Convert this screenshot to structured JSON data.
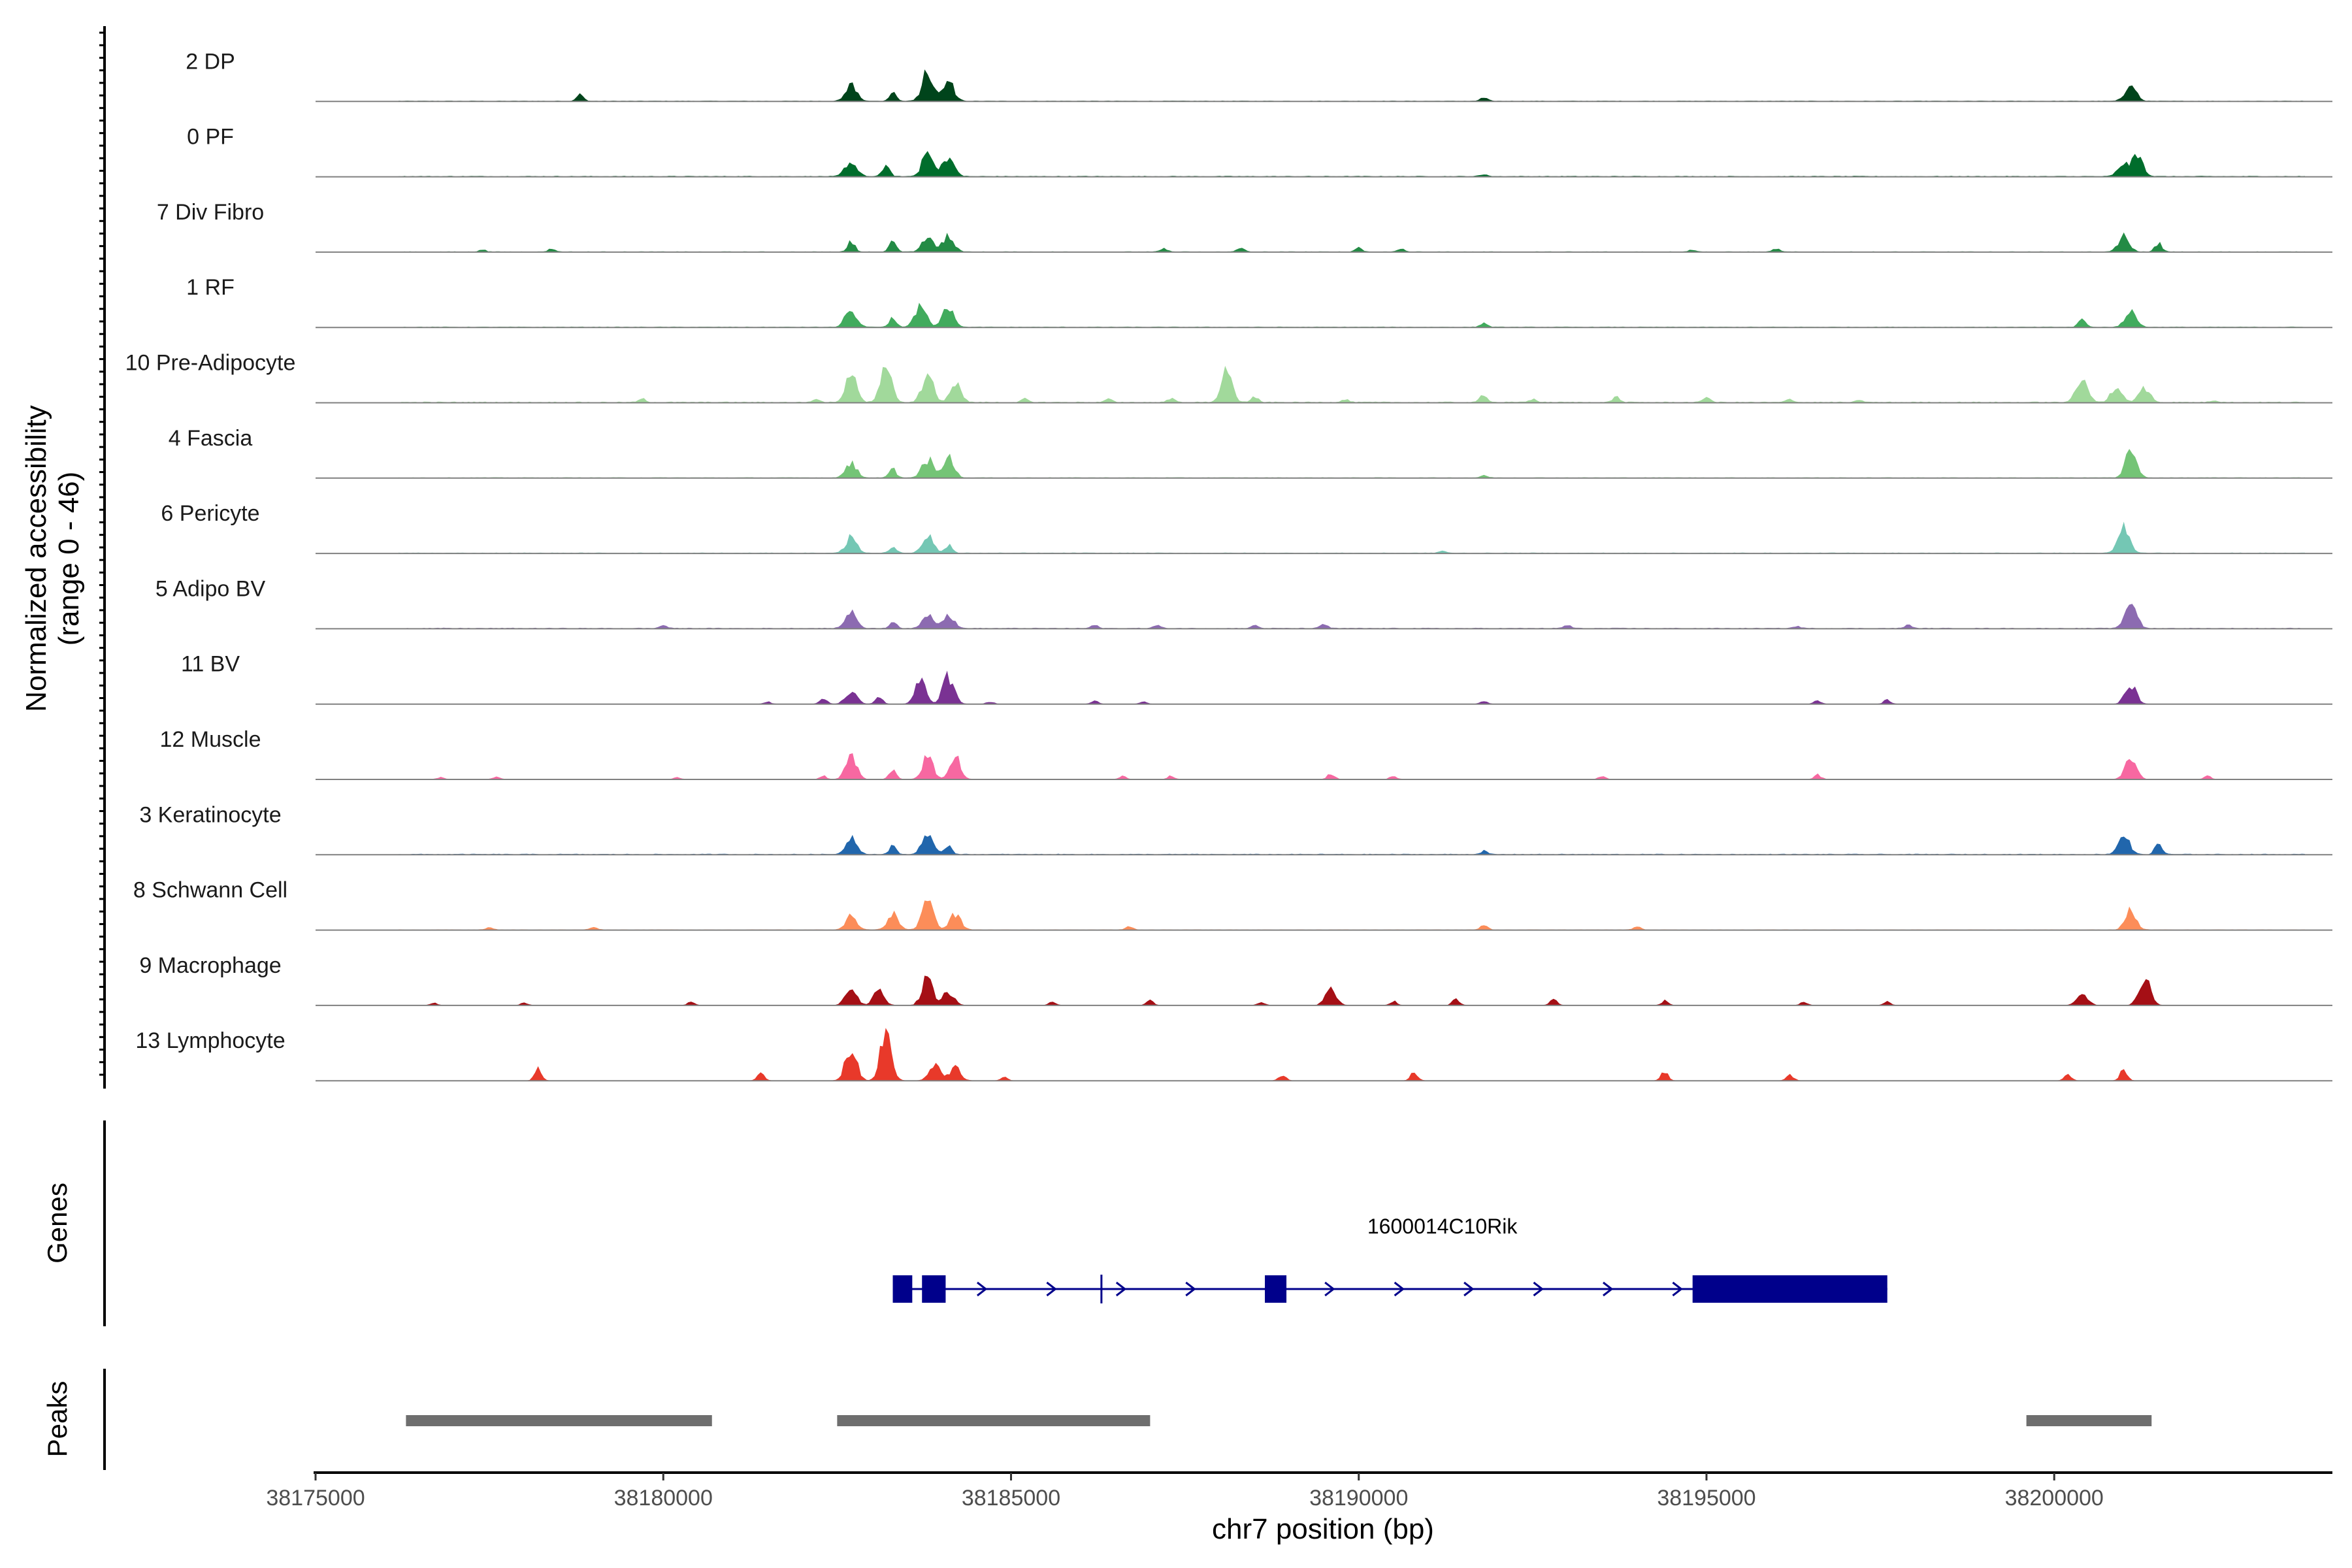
{
  "chart_data": {
    "type": "area",
    "title": "",
    "ylabel_line1": "Normalized accessibility",
    "ylabel_line2": "(range 0 - 46)",
    "y_range": [
      0,
      46
    ],
    "xlabel": "chr7 position (bp)",
    "x_range": [
      38175000,
      38204000
    ],
    "x_ticks": [
      38175000,
      38180000,
      38185000,
      38190000,
      38195000,
      38200000
    ],
    "x_tick_labels": [
      "38175000",
      "38180000",
      "38185000",
      "38190000",
      "38195000",
      "38200000"
    ],
    "tracks": [
      {
        "name": "2 DP",
        "color": "#00441b",
        "peaks": [
          [
            38178800,
            6
          ],
          [
            38182700,
            14
          ],
          [
            38183300,
            8
          ],
          [
            38183800,
            26
          ],
          [
            38184100,
            18
          ],
          [
            38191800,
            3
          ],
          [
            38201100,
            16
          ]
        ],
        "baseline": 0.4
      },
      {
        "name": "0 PF",
        "color": "#006d2c",
        "peaks": [
          [
            38182700,
            15
          ],
          [
            38183200,
            10
          ],
          [
            38183800,
            21
          ],
          [
            38184100,
            19
          ],
          [
            38191800,
            2
          ],
          [
            38201000,
            12
          ],
          [
            38201200,
            18
          ]
        ],
        "baseline": 0.5
      },
      {
        "name": "7 Div Fibro",
        "color": "#238b45",
        "peaks": [
          [
            38177400,
            2
          ],
          [
            38178400,
            3
          ],
          [
            38182700,
            10
          ],
          [
            38183300,
            9
          ],
          [
            38183800,
            14
          ],
          [
            38184100,
            15
          ],
          [
            38187200,
            3
          ],
          [
            38188300,
            4
          ],
          [
            38190000,
            4
          ],
          [
            38190600,
            3
          ],
          [
            38194800,
            2
          ],
          [
            38196000,
            3
          ],
          [
            38201000,
            14
          ],
          [
            38201500,
            8
          ]
        ],
        "baseline": 0.3
      },
      {
        "name": "1 RF",
        "color": "#41ab5d",
        "peaks": [
          [
            38182700,
            17
          ],
          [
            38183300,
            8
          ],
          [
            38183700,
            20
          ],
          [
            38184100,
            19
          ],
          [
            38191800,
            4
          ],
          [
            38200400,
            7
          ],
          [
            38201100,
            17
          ]
        ],
        "baseline": 0.4
      },
      {
        "name": "10 Pre-Adipocyte",
        "color": "#a1d99b",
        "peaks": [
          [
            38179700,
            3
          ],
          [
            38182200,
            3
          ],
          [
            38182700,
            29
          ],
          [
            38183200,
            34
          ],
          [
            38183800,
            25
          ],
          [
            38184200,
            17
          ],
          [
            38185200,
            3
          ],
          [
            38186400,
            3
          ],
          [
            38187300,
            4
          ],
          [
            38188100,
            27
          ],
          [
            38188500,
            5
          ],
          [
            38189800,
            3
          ],
          [
            38191800,
            8
          ],
          [
            38192500,
            3
          ],
          [
            38193700,
            5
          ],
          [
            38195000,
            5
          ],
          [
            38196200,
            3
          ],
          [
            38197200,
            2
          ],
          [
            38200400,
            25
          ],
          [
            38200900,
            15
          ],
          [
            38201300,
            13
          ],
          [
            38202300,
            2
          ]
        ],
        "baseline": 0.6
      },
      {
        "name": "4 Fascia",
        "color": "#74c476",
        "peaks": [
          [
            38182700,
            14
          ],
          [
            38183300,
            8
          ],
          [
            38183800,
            17
          ],
          [
            38184100,
            19
          ],
          [
            38191800,
            2
          ],
          [
            38201100,
            27
          ]
        ],
        "baseline": 0.4
      },
      {
        "name": "6 Pericyte",
        "color": "#74c7b4",
        "peaks": [
          [
            38182700,
            14
          ],
          [
            38183300,
            6
          ],
          [
            38183800,
            16
          ],
          [
            38184100,
            8
          ],
          [
            38191200,
            2
          ],
          [
            38201000,
            24
          ]
        ],
        "baseline": 0.4
      },
      {
        "name": "5 Adipo BV",
        "color": "#8c6bb1",
        "peaks": [
          [
            38180000,
            3
          ],
          [
            38182700,
            16
          ],
          [
            38183300,
            6
          ],
          [
            38183800,
            13
          ],
          [
            38184100,
            13
          ],
          [
            38186200,
            3
          ],
          [
            38187100,
            3
          ],
          [
            38188500,
            3
          ],
          [
            38189500,
            4
          ],
          [
            38193000,
            3
          ],
          [
            38196300,
            2
          ],
          [
            38197900,
            3
          ],
          [
            38201100,
            28
          ]
        ],
        "baseline": 0.5
      },
      {
        "name": "11 BV",
        "color": "#7a3293",
        "peaks": [
          [
            38181500,
            2
          ],
          [
            38182300,
            5
          ],
          [
            38182700,
            12
          ],
          [
            38183100,
            7
          ],
          [
            38183700,
            21
          ],
          [
            38184100,
            25
          ],
          [
            38184700,
            2
          ],
          [
            38186200,
            3
          ],
          [
            38186900,
            2
          ],
          [
            38191800,
            3
          ],
          [
            38196600,
            3
          ],
          [
            38197600,
            4
          ],
          [
            38201100,
            18
          ]
        ],
        "baseline": 0.0
      },
      {
        "name": "12 Muscle",
        "color": "#f768a1",
        "peaks": [
          [
            38176800,
            2
          ],
          [
            38177600,
            2
          ],
          [
            38180200,
            2
          ],
          [
            38182300,
            3
          ],
          [
            38182700,
            20
          ],
          [
            38183300,
            9
          ],
          [
            38183800,
            20
          ],
          [
            38184200,
            20
          ],
          [
            38186600,
            3
          ],
          [
            38187300,
            3
          ],
          [
            38189600,
            5
          ],
          [
            38190500,
            3
          ],
          [
            38193500,
            3
          ],
          [
            38196600,
            4
          ],
          [
            38201100,
            20
          ],
          [
            38202200,
            3
          ]
        ],
        "baseline": 0.0
      },
      {
        "name": "3 Keratinocyte",
        "color": "#2166ac",
        "peaks": [
          [
            38182700,
            16
          ],
          [
            38183300,
            8
          ],
          [
            38183800,
            19
          ],
          [
            38184100,
            9
          ],
          [
            38191800,
            3
          ],
          [
            38201000,
            18
          ],
          [
            38201500,
            10
          ]
        ],
        "baseline": 0.5
      },
      {
        "name": "8 Schwann Cell",
        "color": "#fc8d59",
        "peaks": [
          [
            38177500,
            2
          ],
          [
            38179000,
            3
          ],
          [
            38182700,
            12
          ],
          [
            38183300,
            14
          ],
          [
            38183800,
            32
          ],
          [
            38184200,
            14
          ],
          [
            38186700,
            3
          ],
          [
            38191800,
            5
          ],
          [
            38194000,
            3
          ],
          [
            38201100,
            18
          ]
        ],
        "baseline": 0.3
      },
      {
        "name": "9 Macrophage",
        "color": "#a50f15",
        "peaks": [
          [
            38176700,
            2
          ],
          [
            38178000,
            2
          ],
          [
            38180400,
            3
          ],
          [
            38182700,
            17
          ],
          [
            38183100,
            13
          ],
          [
            38183800,
            26
          ],
          [
            38184100,
            13
          ],
          [
            38185600,
            3
          ],
          [
            38187000,
            4
          ],
          [
            38188600,
            3
          ],
          [
            38189600,
            16
          ],
          [
            38190500,
            4
          ],
          [
            38191400,
            6
          ],
          [
            38192800,
            5
          ],
          [
            38194400,
            4
          ],
          [
            38196400,
            3
          ],
          [
            38197600,
            3
          ],
          [
            38200400,
            12
          ],
          [
            38201300,
            26
          ]
        ],
        "baseline": 0.0
      },
      {
        "name": "13 Lymphocyte",
        "color": "#e8392a",
        "peaks": [
          [
            38178200,
            10
          ],
          [
            38181400,
            8
          ],
          [
            38182700,
            32
          ],
          [
            38183200,
            46
          ],
          [
            38183900,
            16
          ],
          [
            38184200,
            12
          ],
          [
            38184900,
            3
          ],
          [
            38188900,
            5
          ],
          [
            38190800,
            8
          ],
          [
            38194400,
            8
          ],
          [
            38196200,
            5
          ],
          [
            38200200,
            6
          ],
          [
            38201000,
            10
          ]
        ],
        "baseline": 0.0
      }
    ],
    "genes": [
      {
        "name": "1600014C10Rik",
        "strand": "+",
        "start": 38183300,
        "end": 38197600,
        "exons": [
          [
            38183300,
            38183580
          ],
          [
            38183720,
            38184060
          ],
          [
            38188650,
            38188960
          ],
          [
            38194800,
            38197600
          ]
        ],
        "tss_marker": 38186300
      }
    ],
    "peak_regions": [
      [
        38176300,
        38180700
      ],
      [
        38182500,
        38187000
      ],
      [
        38199600,
        38201400
      ]
    ],
    "panel_labels": {
      "genes": "Genes",
      "peaks": "Peaks"
    }
  }
}
